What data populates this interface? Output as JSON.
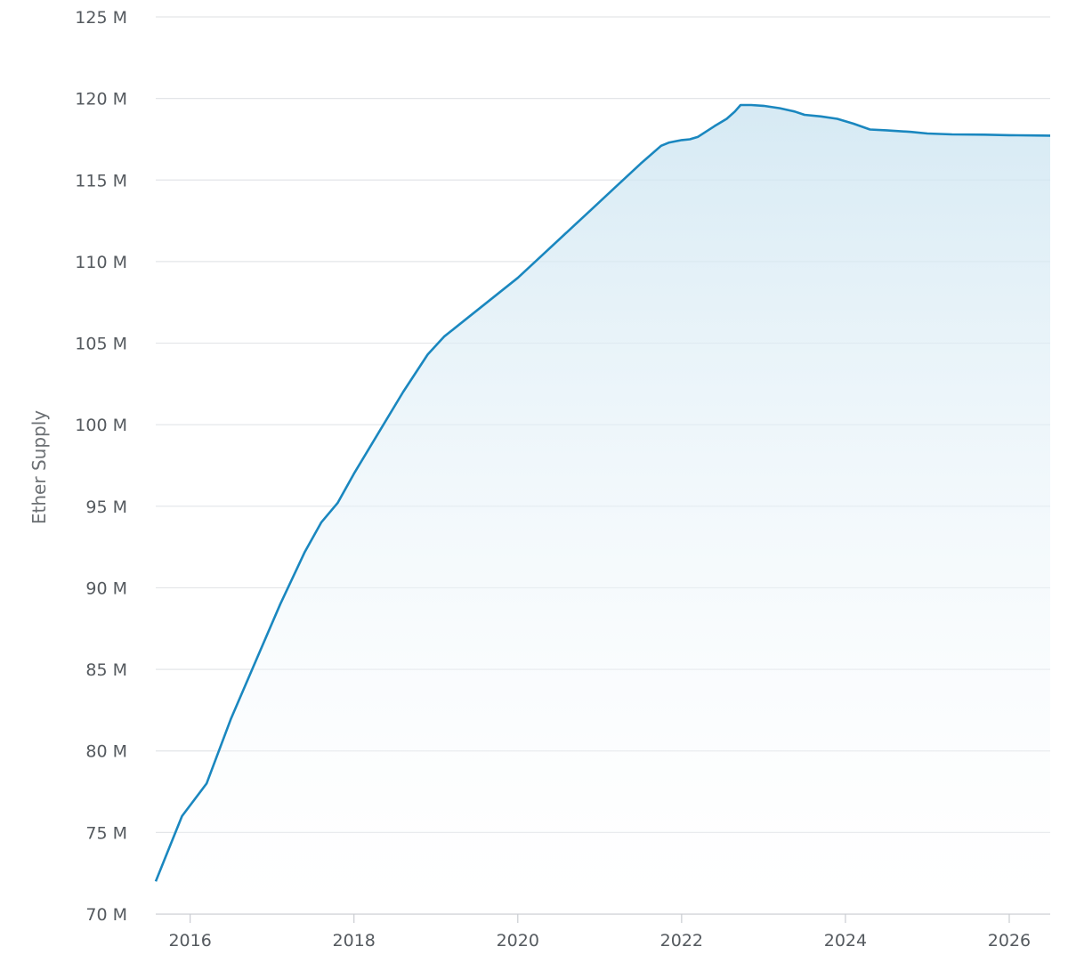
{
  "chart_data": {
    "type": "area",
    "title": "",
    "xlabel": "",
    "ylabel": "Ether Supply",
    "xlim": [
      2015.58,
      2026.5
    ],
    "ylim": [
      70,
      125
    ],
    "y_ticks": [
      {
        "value": 70,
        "label": "70 M"
      },
      {
        "value": 75,
        "label": "75 M"
      },
      {
        "value": 80,
        "label": "80 M"
      },
      {
        "value": 85,
        "label": "85 M"
      },
      {
        "value": 90,
        "label": "90 M"
      },
      {
        "value": 95,
        "label": "95 M"
      },
      {
        "value": 100,
        "label": "100 M"
      },
      {
        "value": 105,
        "label": "105 M"
      },
      {
        "value": 110,
        "label": "110 M"
      },
      {
        "value": 115,
        "label": "115 M"
      },
      {
        "value": 120,
        "label": "120 M"
      },
      {
        "value": 125,
        "label": "125 M"
      }
    ],
    "x_ticks": [
      {
        "value": 2016,
        "label": "2016"
      },
      {
        "value": 2018,
        "label": "2018"
      },
      {
        "value": 2020,
        "label": "2020"
      },
      {
        "value": 2022,
        "label": "2022"
      },
      {
        "value": 2024,
        "label": "2024"
      },
      {
        "value": 2026,
        "label": "2026"
      }
    ],
    "grid": true,
    "legend": "none",
    "series": [
      {
        "unit": "M ETH",
        "color": "#1a87bf",
        "fill_top": "#cfe6f2",
        "fill_bottom": "#ffffff",
        "points": [
          [
            2015.58,
            72.0
          ],
          [
            2015.7,
            73.5
          ],
          [
            2015.9,
            76.0
          ],
          [
            2016.2,
            78.0
          ],
          [
            2016.5,
            82.0
          ],
          [
            2016.8,
            85.5
          ],
          [
            2017.1,
            89.0
          ],
          [
            2017.4,
            92.2
          ],
          [
            2017.6,
            94.0
          ],
          [
            2017.8,
            95.2
          ],
          [
            2018.0,
            97.0
          ],
          [
            2018.3,
            99.5
          ],
          [
            2018.6,
            102.0
          ],
          [
            2018.9,
            104.3
          ],
          [
            2019.1,
            105.4
          ],
          [
            2019.4,
            106.6
          ],
          [
            2019.7,
            107.8
          ],
          [
            2020.0,
            109.0
          ],
          [
            2020.3,
            110.4
          ],
          [
            2020.6,
            111.8
          ],
          [
            2020.9,
            113.2
          ],
          [
            2021.2,
            114.6
          ],
          [
            2021.5,
            116.0
          ],
          [
            2021.75,
            117.1
          ],
          [
            2021.85,
            117.3
          ],
          [
            2022.0,
            117.45
          ],
          [
            2022.1,
            117.5
          ],
          [
            2022.2,
            117.65
          ],
          [
            2022.4,
            118.3
          ],
          [
            2022.55,
            118.75
          ],
          [
            2022.65,
            119.2
          ],
          [
            2022.72,
            119.6
          ],
          [
            2022.85,
            119.6
          ],
          [
            2023.0,
            119.55
          ],
          [
            2023.2,
            119.4
          ],
          [
            2023.38,
            119.2
          ],
          [
            2023.5,
            119.0
          ],
          [
            2023.7,
            118.9
          ],
          [
            2023.9,
            118.75
          ],
          [
            2024.1,
            118.45
          ],
          [
            2024.3,
            118.1
          ],
          [
            2024.5,
            118.05
          ],
          [
            2024.8,
            117.95
          ],
          [
            2025.0,
            117.85
          ],
          [
            2025.3,
            117.8
          ],
          [
            2025.7,
            117.78
          ],
          [
            2026.0,
            117.75
          ],
          [
            2026.3,
            117.73
          ],
          [
            2026.5,
            117.72
          ]
        ]
      }
    ]
  }
}
